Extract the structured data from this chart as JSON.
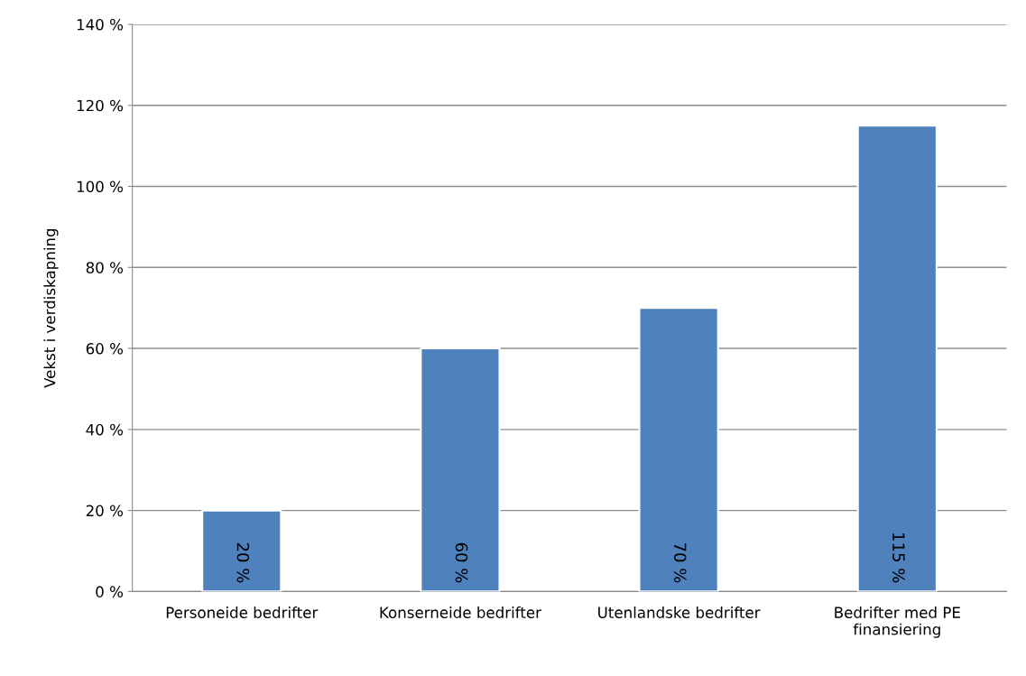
{
  "chart_data": {
    "type": "bar",
    "ylabel": "Vekst i verdiskapning",
    "categories": [
      "Personeide bedrifter",
      "Konserneide bedrifter",
      "Utenlandske bedrifter",
      "Bedrifter med PE\nfinansiering"
    ],
    "values": [
      20,
      60,
      70,
      115
    ],
    "color": "#4f81bd",
    "value_labels": [
      "20 %",
      "60 %",
      "70 %",
      "115 %"
    ],
    "ylim": [
      0,
      140
    ],
    "yticks": [
      {
        "value": 0,
        "label": "0 %"
      },
      {
        "value": 20,
        "label": "20 %"
      },
      {
        "value": 40,
        "label": "40 %"
      },
      {
        "value": 60,
        "label": "60 %"
      },
      {
        "value": 80,
        "label": "80 %"
      },
      {
        "value": 100,
        "label": "100 %"
      },
      {
        "value": 120,
        "label": "120 %"
      },
      {
        "value": 140,
        "label": "140 %"
      }
    ],
    "grid": "y",
    "legend": false
  }
}
